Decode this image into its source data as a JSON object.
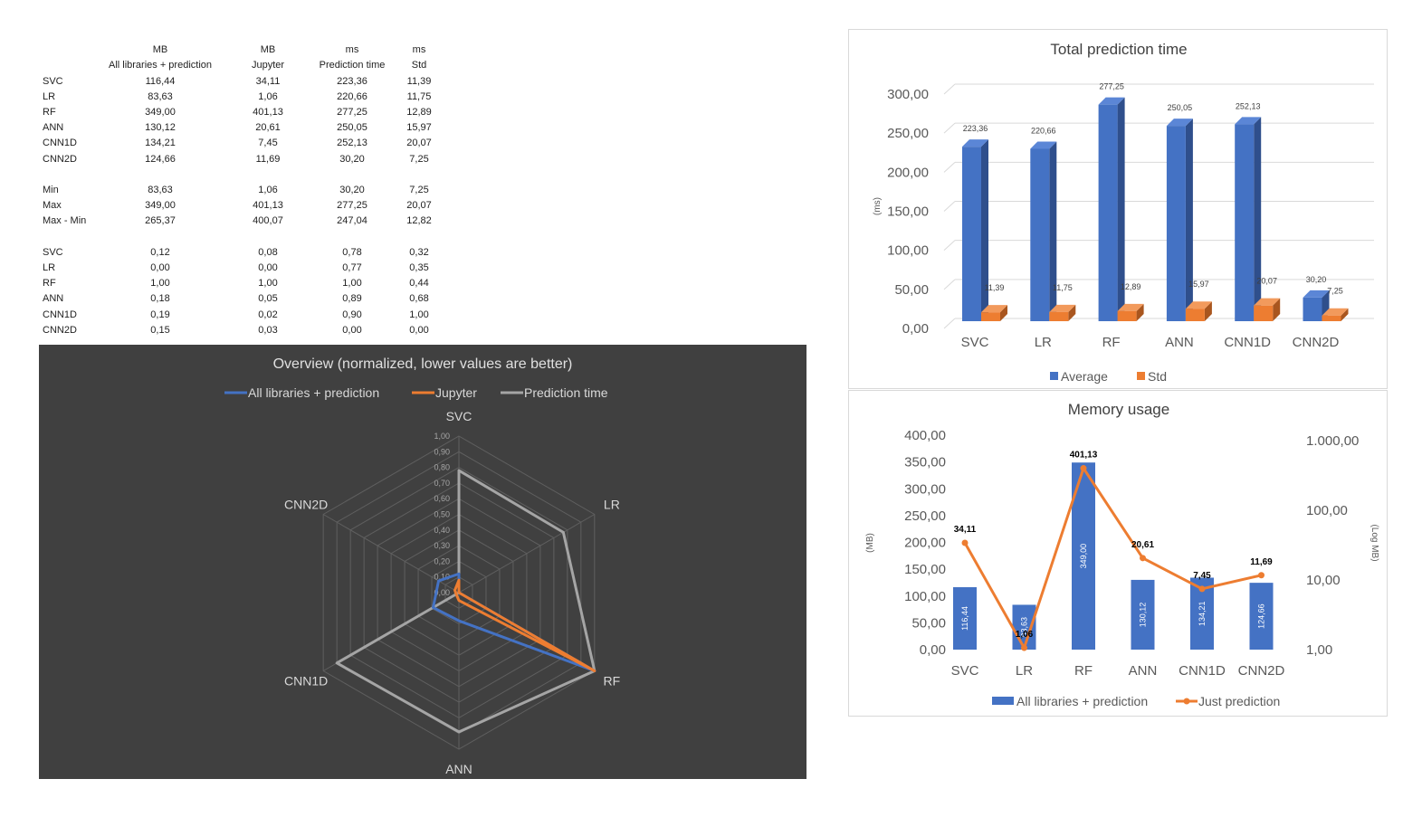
{
  "table": {
    "headers": [
      {
        "unit": "MB",
        "label": "All libraries + prediction"
      },
      {
        "unit": "MB",
        "label": "Jupyter"
      },
      {
        "unit": "ms",
        "label": "Prediction time"
      },
      {
        "unit": "ms",
        "label": "Std"
      }
    ],
    "blocks": [
      [
        {
          "label": "SVC",
          "values": [
            "116,44",
            "34,11",
            "223,36",
            "11,39"
          ]
        },
        {
          "label": "LR",
          "values": [
            "83,63",
            "1,06",
            "220,66",
            "11,75"
          ]
        },
        {
          "label": "RF",
          "values": [
            "349,00",
            "401,13",
            "277,25",
            "12,89"
          ]
        },
        {
          "label": "ANN",
          "values": [
            "130,12",
            "20,61",
            "250,05",
            "15,97"
          ]
        },
        {
          "label": "CNN1D",
          "values": [
            "134,21",
            "7,45",
            "252,13",
            "20,07"
          ]
        },
        {
          "label": "CNN2D",
          "values": [
            "124,66",
            "11,69",
            "30,20",
            "7,25"
          ]
        }
      ],
      [
        {
          "label": "Min",
          "values": [
            "83,63",
            "1,06",
            "30,20",
            "7,25"
          ]
        },
        {
          "label": "Max",
          "values": [
            "349,00",
            "401,13",
            "277,25",
            "20,07"
          ]
        },
        {
          "label": "Max - Min",
          "values": [
            "265,37",
            "400,07",
            "247,04",
            "12,82"
          ]
        }
      ],
      [
        {
          "label": "SVC",
          "values": [
            "0,12",
            "0,08",
            "0,78",
            "0,32"
          ]
        },
        {
          "label": "LR",
          "values": [
            "0,00",
            "0,00",
            "0,77",
            "0,35"
          ]
        },
        {
          "label": "RF",
          "values": [
            "1,00",
            "1,00",
            "1,00",
            "0,44"
          ]
        },
        {
          "label": "ANN",
          "values": [
            "0,18",
            "0,05",
            "0,89",
            "0,68"
          ]
        },
        {
          "label": "CNN1D",
          "values": [
            "0,19",
            "0,02",
            "0,90",
            "1,00"
          ]
        },
        {
          "label": "CNN2D",
          "values": [
            "0,15",
            "0,03",
            "0,00",
            "0,00"
          ]
        }
      ]
    ]
  },
  "chart_data": [
    {
      "type": "radar",
      "title": "Overview (normalized, lower values are better)",
      "categories": [
        "SVC",
        "LR",
        "RF",
        "ANN",
        "CNN1D",
        "CNN2D"
      ],
      "rlim": [
        0,
        1
      ],
      "ticks": [
        "0,00",
        "0,10",
        "0,20",
        "0,30",
        "0,40",
        "0,50",
        "0,60",
        "0,70",
        "0,80",
        "0,90",
        "1,00"
      ],
      "legend_position": "top",
      "series": [
        {
          "name": "All libraries + prediction",
          "values": [
            0.12,
            0.0,
            1.0,
            0.18,
            0.19,
            0.15
          ],
          "color": "#4472c4"
        },
        {
          "name": "Jupyter",
          "values": [
            0.08,
            0.0,
            1.0,
            0.05,
            0.02,
            0.03
          ],
          "color": "#ed7d31"
        },
        {
          "name": "Prediction time",
          "values": [
            0.78,
            0.77,
            1.0,
            0.89,
            0.9,
            0.0
          ],
          "color": "#a5a5a5"
        }
      ]
    },
    {
      "type": "bar",
      "title": "Total prediction time",
      "categories": [
        "SVC",
        "LR",
        "RF",
        "ANN",
        "CNN1D",
        "CNN2D"
      ],
      "ylabel": "(ms)",
      "ylim": [
        0,
        300
      ],
      "yticks": [
        "0,00",
        "50,00",
        "100,00",
        "150,00",
        "200,00",
        "250,00",
        "300,00"
      ],
      "grid": true,
      "legend_position": "bottom",
      "series": [
        {
          "name": "Average",
          "values": [
            223.36,
            220.66,
            277.25,
            250.05,
            252.13,
            30.2
          ],
          "labels": [
            "223,36",
            "220,66",
            "277,25",
            "250,05",
            "252,13",
            "30,20"
          ],
          "color": "#4472c4"
        },
        {
          "name": "Std",
          "values": [
            11.39,
            11.75,
            12.89,
            15.97,
            20.07,
            7.25
          ],
          "labels": [
            "11,39",
            "11,75",
            "12,89",
            "15,97",
            "20,07",
            "7,25"
          ],
          "color": "#ed7d31"
        }
      ]
    },
    {
      "type": "bar+line",
      "title": "Memory usage",
      "categories": [
        "SVC",
        "LR",
        "RF",
        "ANN",
        "CNN1D",
        "CNN2D"
      ],
      "ylabel": "(MB)",
      "ylim": [
        0,
        400
      ],
      "yticks": [
        "0,00",
        "50,00",
        "100,00",
        "150,00",
        "200,00",
        "250,00",
        "300,00",
        "350,00",
        "400,00"
      ],
      "y2label": "(Log MB)",
      "y2scale": "log",
      "y2lim": [
        1,
        1000
      ],
      "y2ticks": [
        "1,00",
        "10,00",
        "100,00",
        "1.000,00"
      ],
      "legend_position": "bottom",
      "series": [
        {
          "name": "All libraries + prediction",
          "kind": "bar",
          "axis": "left",
          "values": [
            116.44,
            83.63,
            349.0,
            130.12,
            134.21,
            124.66
          ],
          "labels": [
            "116,44",
            "83,63",
            "349,00",
            "130,12",
            "134,21",
            "124,66"
          ],
          "color": "#4472c4"
        },
        {
          "name": "Just prediction",
          "kind": "line",
          "axis": "right",
          "values": [
            34.11,
            1.06,
            401.13,
            20.61,
            7.45,
            11.69
          ],
          "labels": [
            "34,11",
            "1,06",
            "401,13",
            "20,61",
            "7,45",
            "11,69"
          ],
          "color": "#ed7d31"
        }
      ]
    }
  ]
}
